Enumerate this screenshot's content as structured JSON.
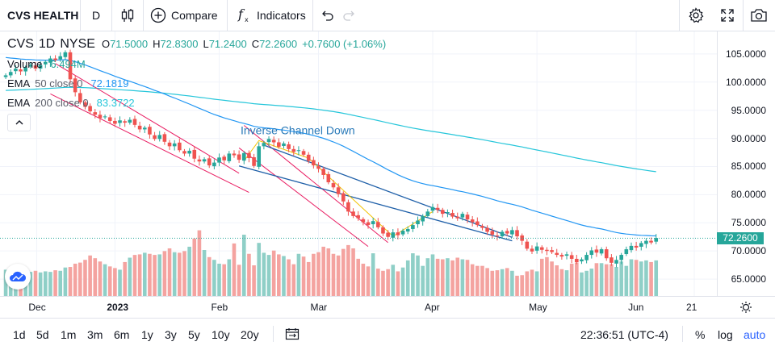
{
  "toolbar": {
    "symbol": "CVS HEALTH",
    "interval": "D",
    "compare_label": "Compare",
    "indicators_label": "Indicators"
  },
  "legend": {
    "symbol": "CVS",
    "interval": "1D",
    "exchange": "NYSE",
    "open_label": "O",
    "open": "71.5000",
    "high_label": "H",
    "high": "72.8300",
    "low_label": "L",
    "low": "71.2400",
    "close_label": "C",
    "close": "72.2600",
    "change": "+0.7600 (+1.06%)",
    "volume_label": "Volume",
    "volume_value": "6.494M",
    "ema50_label": "EMA",
    "ema50_params": "50 close 0",
    "ema50_value": "72.1819",
    "ema200_label": "EMA",
    "ema200_params": "200 close 0",
    "ema200_value": "83.3722"
  },
  "annotation": "Inverse Channel Down",
  "price_axis": {
    "ticks": [
      "105.0000",
      "100.0000",
      "95.0000",
      "90.0000",
      "85.0000",
      "80.0000",
      "75.0000",
      "70.0000",
      "65.0000"
    ],
    "last_price": "72.2600"
  },
  "time_axis": {
    "ticks": [
      {
        "label": "Dec",
        "bold": false
      },
      {
        "label": "2023",
        "bold": true
      },
      {
        "label": "Feb",
        "bold": false
      },
      {
        "label": "Mar",
        "bold": false
      },
      {
        "label": "Apr",
        "bold": false
      },
      {
        "label": "May",
        "bold": false
      },
      {
        "label": "Jun",
        "bold": false
      },
      {
        "label": "21",
        "bold": false
      }
    ]
  },
  "bottom": {
    "ranges": [
      "1d",
      "5d",
      "1m",
      "3m",
      "6m",
      "1y",
      "3y",
      "5y",
      "10y",
      "20y"
    ],
    "clock": "22:36:51 (UTC-4)",
    "percent_label": "%",
    "log_label": "log",
    "auto_label": "auto"
  },
  "colors": {
    "up": "#26a69a",
    "down": "#ef5350",
    "vol_up": "#8fcfc7",
    "vol_down": "#f4a3a0",
    "ema50": "#2196f3",
    "ema200": "#26c6da",
    "channel": "#e91e63",
    "trendline": "#1e5fa8",
    "path": "#f2c200",
    "accent": "#2962ff"
  },
  "chart_data": {
    "type": "candlestick",
    "y_range": [
      62,
      109
    ],
    "x_axis": "daily, early Dec 2022 to mid Jun 2023",
    "closes": [
      101.2,
      101.8,
      102.4,
      101.9,
      102.6,
      103.1,
      102.4,
      103.0,
      103.6,
      104.2,
      103.9,
      104.6,
      105.3,
      100.5,
      98.2,
      96.4,
      95.6,
      94.8,
      94.2,
      93.6,
      93.9,
      93.1,
      92.6,
      93.2,
      92.8,
      93.3,
      92.4,
      91.6,
      91.9,
      90.7,
      89.9,
      90.6,
      89.4,
      88.6,
      89.1,
      87.9,
      87.3,
      87.8,
      86.4,
      85.9,
      86.3,
      85.2,
      85.7,
      86.6,
      86.1,
      87.3,
      87.0,
      86.2,
      87.4,
      86.5,
      85.1,
      88.6,
      89.2,
      89.9,
      89.3,
      88.5,
      89.1,
      88.1,
      87.6,
      87.9,
      87.1,
      86.0,
      85.2,
      84.6,
      83.5,
      82.2,
      81.3,
      80.1,
      78.8,
      77.0,
      76.2,
      75.8,
      75.1,
      74.6,
      75.3,
      74.2,
      73.1,
      72.5,
      73.3,
      72.8,
      73.6,
      73.9,
      74.6,
      75.4,
      76.2,
      77.0,
      77.8,
      77.3,
      76.6,
      76.9,
      76.1,
      75.8,
      76.6,
      75.6,
      75.1,
      74.6,
      74.1,
      73.4,
      72.9,
      72.6,
      73.4,
      73.1,
      73.7,
      72.6,
      71.8,
      70.4,
      69.9,
      70.8,
      70.2,
      70.0,
      69.8,
      69.3,
      69.0,
      69.4,
      68.6,
      68.0,
      68.5,
      69.3,
      70.1,
      69.7,
      70.3,
      68.7,
      67.9,
      68.4,
      69.3,
      70.3,
      70.9,
      70.6,
      71.4,
      71.8,
      71.5,
      72.3
    ],
    "volumes": [
      4.8,
      4.5,
      4.7,
      4.6,
      4.5,
      4.4,
      4.6,
      4.3,
      4.5,
      4.4,
      4.7,
      4.6,
      5.2,
      5.3,
      5.9,
      6.1,
      6.6,
      7.4,
      6.9,
      6.3,
      5.8,
      5.4,
      5.1,
      4.8,
      6.2,
      7.0,
      7.5,
      7.6,
      7.9,
      7.7,
      7.5,
      7.6,
      8.2,
      8.7,
      8.0,
      7.9,
      8.2,
      9.0,
      10.5,
      12.0,
      8.4,
      7.1,
      6.6,
      5.9,
      5.8,
      6.7,
      9.6,
      5.7,
      11.2,
      7.7,
      5.6,
      9.7,
      7.9,
      7.5,
      8.3,
      7.6,
      7.3,
      6.7,
      5.8,
      7.7,
      7.2,
      6.2,
      7.7,
      8.0,
      9.0,
      8.7,
      7.7,
      7.4,
      8.6,
      9.3,
      8.7,
      6.8,
      5.9,
      5.4,
      7.8,
      5.0,
      4.6,
      4.9,
      5.7,
      4.5,
      5.2,
      6.5,
      7.8,
      7.4,
      5.5,
      6.9,
      7.6,
      6.8,
      6.7,
      6.9,
      6.5,
      7.0,
      6.7,
      6.6,
      5.8,
      5.5,
      5.5,
      5.1,
      4.6,
      4.7,
      4.9,
      5.1,
      4.6,
      3.7,
      3.8,
      4.5,
      4.8,
      4.5,
      6.8,
      7.1,
      6.3,
      5.6,
      4.9,
      4.7,
      5.9,
      6.1,
      4.3,
      4.6,
      5.0,
      6.0,
      6.0,
      5.8,
      5.8,
      5.3,
      6.3,
      5.5,
      6.7,
      6.6,
      6.3,
      6.5,
      6.2,
      6.5
    ],
    "ema50": {
      "x_start_index": 0,
      "note": "declining from ~103 to 72.18"
    },
    "ema200": {
      "x_start_index": 0,
      "note": "declining from ~97 to 83.37"
    },
    "last_price": 72.26
  }
}
